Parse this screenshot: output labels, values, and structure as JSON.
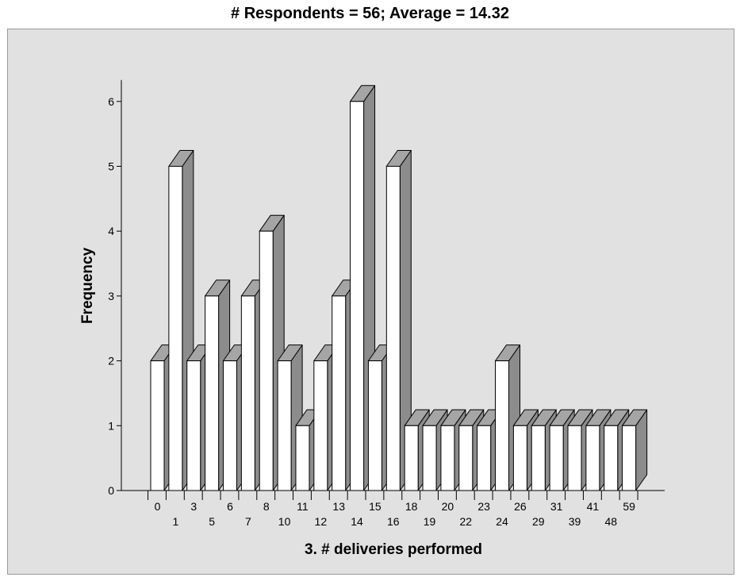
{
  "chart_data": {
    "type": "bar",
    "title": "# Respondents = 56; Average = 14.32",
    "xlabel": "3. # deliveries performed",
    "ylabel": "Frequency",
    "ylim": [
      0,
      6
    ],
    "yticks": [
      "0",
      "1",
      "2",
      "3",
      "4",
      "5",
      "6"
    ],
    "categories": [
      "0",
      "1",
      "3",
      "5",
      "6",
      "7",
      "8",
      "10",
      "11",
      "12",
      "13",
      "14",
      "15",
      "16",
      "18",
      "19",
      "20",
      "22",
      "23",
      "24",
      "26",
      "29",
      "31",
      "39",
      "41",
      "48",
      "59"
    ],
    "values": [
      2,
      5,
      2,
      3,
      2,
      3,
      4,
      2,
      1,
      2,
      3,
      6,
      2,
      5,
      1,
      1,
      1,
      1,
      1,
      2,
      1,
      1,
      1,
      1,
      1,
      1,
      1
    ],
    "grid": false,
    "legend": "none"
  },
  "colors": {
    "plot_background": "#e1e1e1",
    "bar_face": "#ffffff",
    "bar_side": "#8c8c8c",
    "bar_top": "#a5a5a5",
    "bar_outline": "#000000"
  }
}
